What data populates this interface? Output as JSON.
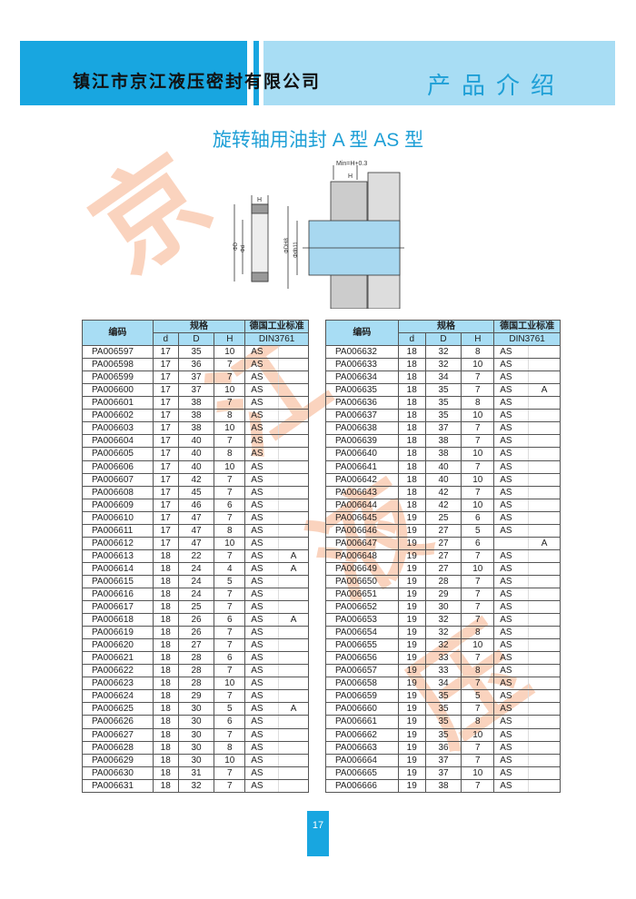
{
  "header": {
    "company": "镇江市京江液压密封有限公司",
    "section": "产品介绍",
    "brand_color": "#18a6e0",
    "light_color": "#a8ddf4"
  },
  "title": "旋转轴用油封 A 型   AS 型",
  "watermark": [
    "京",
    "江",
    "液",
    "压"
  ],
  "diagram": {
    "min_label": "Min=H+0.3",
    "h_label": "H",
    "d_outer": "ΦD",
    "d_inner": "Φd",
    "dh8": "ΦDH8",
    "dh11": "Φdh11"
  },
  "table_headers": {
    "code": "编码",
    "spec": "规格",
    "std": "德国工业标准",
    "din": "DIN3761",
    "d": "d",
    "D": "D",
    "H": "H"
  },
  "left_rows": [
    [
      "PA006597",
      "17",
      "35",
      "10",
      "AS",
      ""
    ],
    [
      "PA006598",
      "17",
      "36",
      "7",
      "AS",
      ""
    ],
    [
      "PA006599",
      "17",
      "37",
      "7",
      "AS",
      ""
    ],
    [
      "PA006600",
      "17",
      "37",
      "10",
      "AS",
      ""
    ],
    [
      "PA006601",
      "17",
      "38",
      "7",
      "AS",
      ""
    ],
    [
      "PA006602",
      "17",
      "38",
      "8",
      "AS",
      ""
    ],
    [
      "PA006603",
      "17",
      "38",
      "10",
      "AS",
      ""
    ],
    [
      "PA006604",
      "17",
      "40",
      "7",
      "AS",
      ""
    ],
    [
      "PA006605",
      "17",
      "40",
      "8",
      "AS",
      ""
    ],
    [
      "PA006606",
      "17",
      "40",
      "10",
      "AS",
      ""
    ],
    [
      "PA006607",
      "17",
      "42",
      "7",
      "AS",
      ""
    ],
    [
      "PA006608",
      "17",
      "45",
      "7",
      "AS",
      ""
    ],
    [
      "PA006609",
      "17",
      "46",
      "6",
      "AS",
      ""
    ],
    [
      "PA006610",
      "17",
      "47",
      "7",
      "AS",
      ""
    ],
    [
      "PA006611",
      "17",
      "47",
      "8",
      "AS",
      ""
    ],
    [
      "PA006612",
      "17",
      "47",
      "10",
      "AS",
      ""
    ],
    [
      "PA006613",
      "18",
      "22",
      "7",
      "AS",
      "A"
    ],
    [
      "PA006614",
      "18",
      "24",
      "4",
      "AS",
      "A"
    ],
    [
      "PA006615",
      "18",
      "24",
      "5",
      "AS",
      ""
    ],
    [
      "PA006616",
      "18",
      "24",
      "7",
      "AS",
      ""
    ],
    [
      "PA006617",
      "18",
      "25",
      "7",
      "AS",
      ""
    ],
    [
      "PA006618",
      "18",
      "26",
      "6",
      "AS",
      "A"
    ],
    [
      "PA006619",
      "18",
      "26",
      "7",
      "AS",
      ""
    ],
    [
      "PA006620",
      "18",
      "27",
      "7",
      "AS",
      ""
    ],
    [
      "PA006621",
      "18",
      "28",
      "6",
      "AS",
      ""
    ],
    [
      "PA006622",
      "18",
      "28",
      "7",
      "AS",
      ""
    ],
    [
      "PA006623",
      "18",
      "28",
      "10",
      "AS",
      ""
    ],
    [
      "PA006624",
      "18",
      "29",
      "7",
      "AS",
      ""
    ],
    [
      "PA006625",
      "18",
      "30",
      "5",
      "AS",
      "A"
    ],
    [
      "PA006626",
      "18",
      "30",
      "6",
      "AS",
      ""
    ],
    [
      "PA006627",
      "18",
      "30",
      "7",
      "AS",
      ""
    ],
    [
      "PA006628",
      "18",
      "30",
      "8",
      "AS",
      ""
    ],
    [
      "PA006629",
      "18",
      "30",
      "10",
      "AS",
      ""
    ],
    [
      "PA006630",
      "18",
      "31",
      "7",
      "AS",
      ""
    ],
    [
      "PA006631",
      "18",
      "32",
      "7",
      "AS",
      ""
    ]
  ],
  "right_rows": [
    [
      "PA006632",
      "18",
      "32",
      "8",
      "AS",
      ""
    ],
    [
      "PA006633",
      "18",
      "32",
      "10",
      "AS",
      ""
    ],
    [
      "PA006634",
      "18",
      "34",
      "7",
      "AS",
      ""
    ],
    [
      "PA006635",
      "18",
      "35",
      "7",
      "AS",
      "A"
    ],
    [
      "PA006636",
      "18",
      "35",
      "8",
      "AS",
      ""
    ],
    [
      "PA006637",
      "18",
      "35",
      "10",
      "AS",
      ""
    ],
    [
      "PA006638",
      "18",
      "37",
      "7",
      "AS",
      ""
    ],
    [
      "PA006639",
      "18",
      "38",
      "7",
      "AS",
      ""
    ],
    [
      "PA006640",
      "18",
      "38",
      "10",
      "AS",
      ""
    ],
    [
      "PA006641",
      "18",
      "40",
      "7",
      "AS",
      ""
    ],
    [
      "PA006642",
      "18",
      "40",
      "10",
      "AS",
      ""
    ],
    [
      "PA006643",
      "18",
      "42",
      "7",
      "AS",
      ""
    ],
    [
      "PA006644",
      "18",
      "42",
      "10",
      "AS",
      ""
    ],
    [
      "PA006645",
      "19",
      "25",
      "6",
      "AS",
      ""
    ],
    [
      "PA006646",
      "19",
      "27",
      "5",
      "AS",
      ""
    ],
    [
      "PA006647",
      "19",
      "27",
      "6",
      "",
      "A"
    ],
    [
      "PA006648",
      "19",
      "27",
      "7",
      "AS",
      ""
    ],
    [
      "PA006649",
      "19",
      "27",
      "10",
      "AS",
      ""
    ],
    [
      "PA006650",
      "19",
      "28",
      "7",
      "AS",
      ""
    ],
    [
      "PA006651",
      "19",
      "29",
      "7",
      "AS",
      ""
    ],
    [
      "PA006652",
      "19",
      "30",
      "7",
      "AS",
      ""
    ],
    [
      "PA006653",
      "19",
      "32",
      "7",
      "AS",
      ""
    ],
    [
      "PA006654",
      "19",
      "32",
      "8",
      "AS",
      ""
    ],
    [
      "PA006655",
      "19",
      "32",
      "10",
      "AS",
      ""
    ],
    [
      "PA006656",
      "19",
      "33",
      "7",
      "AS",
      ""
    ],
    [
      "PA006657",
      "19",
      "33",
      "8",
      "AS",
      ""
    ],
    [
      "PA006658",
      "19",
      "34",
      "7",
      "AS",
      ""
    ],
    [
      "PA006659",
      "19",
      "35",
      "5",
      "AS",
      ""
    ],
    [
      "PA006660",
      "19",
      "35",
      "7",
      "AS",
      ""
    ],
    [
      "PA006661",
      "19",
      "35",
      "8",
      "AS",
      ""
    ],
    [
      "PA006662",
      "19",
      "35",
      "10",
      "AS",
      ""
    ],
    [
      "PA006663",
      "19",
      "36",
      "7",
      "AS",
      ""
    ],
    [
      "PA006664",
      "19",
      "37",
      "7",
      "AS",
      ""
    ],
    [
      "PA006665",
      "19",
      "37",
      "10",
      "AS",
      ""
    ],
    [
      "PA006666",
      "19",
      "38",
      "7",
      "AS",
      ""
    ]
  ],
  "page_number": "17"
}
